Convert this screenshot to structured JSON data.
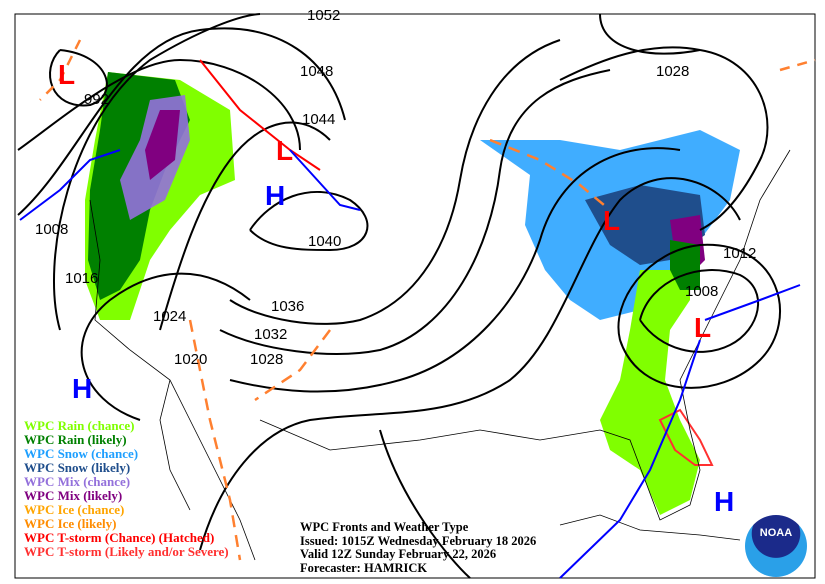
{
  "map": {
    "isobar_labels": [
      "1052",
      "1048",
      "1044",
      "1040",
      "1036",
      "1032",
      "1028",
      "1024",
      "1020",
      "1016",
      "1008",
      "992",
      "1028",
      "1012",
      "1008"
    ],
    "high_label": "H",
    "low_label": "L"
  },
  "legend": [
    {
      "label": "WPC Rain (chance)",
      "color": "#80ff00"
    },
    {
      "label": "WPC Rain (likely)",
      "color": "#008000"
    },
    {
      "label": "WPC Snow (chance)",
      "color": "#1e9fff"
    },
    {
      "label": "WPC Snow (likely)",
      "color": "#1f4e8c"
    },
    {
      "label": "WPC Mix (chance)",
      "color": "#9370db"
    },
    {
      "label": "WPC Mix (likely)",
      "color": "#800080"
    },
    {
      "label": "WPC Ice (chance)",
      "color": "#ffa500"
    },
    {
      "label": "WPC Ice (likely)",
      "color": "#ff8c00"
    },
    {
      "label": "WPC T-storm (Chance) (Hatched)",
      "color": "#ff0000"
    },
    {
      "label": "WPC T-storm (Likely and/or Severe)",
      "color": "#ff3030"
    }
  ],
  "info": {
    "title": "WPC Fronts and Weather Type",
    "issued": "Issued: 1015Z Wednesday February 18 2026",
    "valid": "Valid 12Z Sunday February 22, 2026",
    "forecaster": "Forecaster: HAMRICK"
  },
  "logo": {
    "text": "NOAA"
  }
}
